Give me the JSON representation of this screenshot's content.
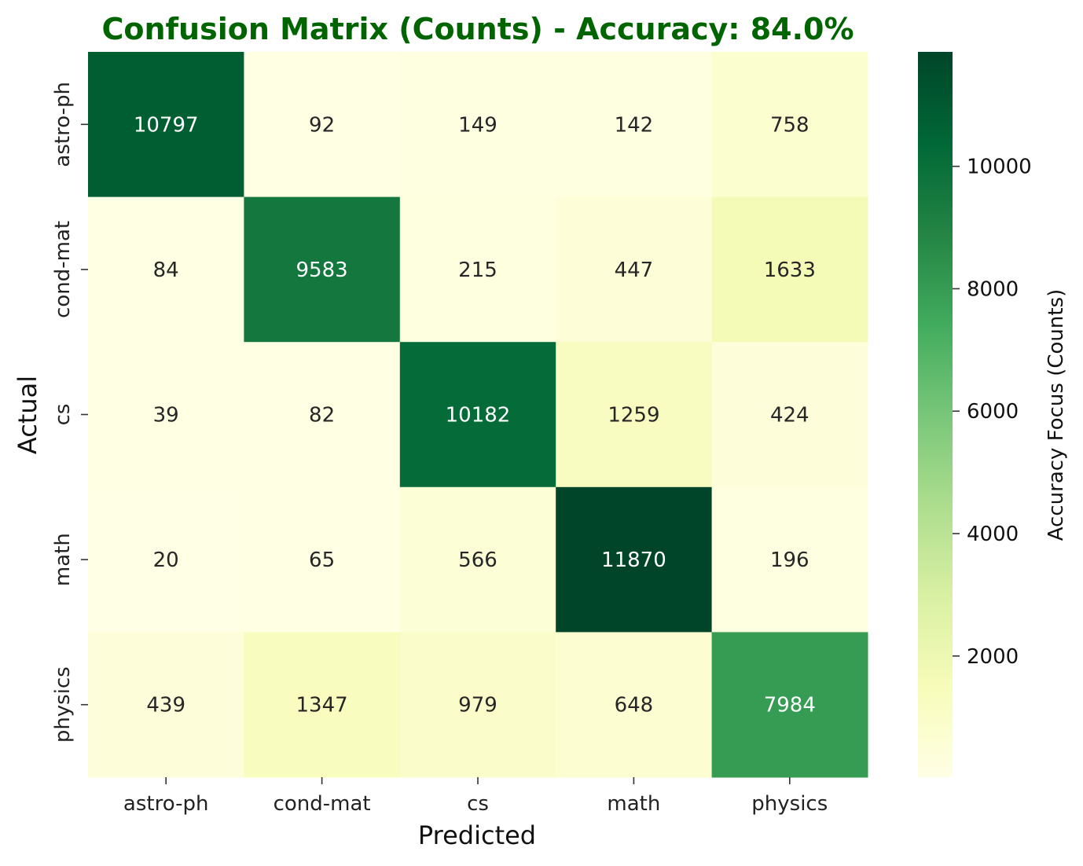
{
  "colors": {
    "title": "#006400",
    "colormap": "YlGn",
    "colormap_stops": [
      "#ffffe5",
      "#f7fcb9",
      "#d9f0a3",
      "#addd8e",
      "#78c679",
      "#41ab5d",
      "#238443",
      "#006837",
      "#004529"
    ],
    "text_dark": "#262626",
    "text_light": "#ffffff"
  },
  "chart_data": {
    "type": "heatmap",
    "title": "Confusion Matrix (Counts) - Accuracy: 84.0%",
    "xlabel": "Predicted",
    "ylabel": "Actual",
    "x_categories": [
      "astro-ph",
      "cond-mat",
      "cs",
      "math",
      "physics"
    ],
    "y_categories": [
      "astro-ph",
      "cond-mat",
      "cs",
      "math",
      "physics"
    ],
    "values": [
      [
        10797,
        92,
        149,
        142,
        758
      ],
      [
        84,
        9583,
        215,
        447,
        1633
      ],
      [
        39,
        82,
        10182,
        1259,
        424
      ],
      [
        20,
        65,
        566,
        11870,
        196
      ],
      [
        439,
        1347,
        979,
        648,
        7984
      ]
    ],
    "vmin": 20,
    "vmax": 11870,
    "colorbar": {
      "label": "Accuracy Focus (Counts)",
      "ticks": [
        2000,
        4000,
        6000,
        8000,
        10000
      ]
    },
    "grid": false
  }
}
